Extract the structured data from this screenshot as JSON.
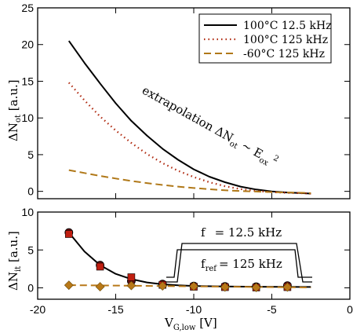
{
  "chart_data": [
    {
      "type": "line",
      "panel": "top",
      "ylabel": "ΔN",
      "ylabel_sub": "ot",
      "ylabel_unit": "[a.u.]",
      "xlim": [
        -20,
        0
      ],
      "ylim": [
        -1,
        25
      ],
      "xticks": [
        -20,
        -15,
        -10,
        -5,
        0
      ],
      "yticks": [
        0,
        5,
        10,
        15,
        20,
        25
      ],
      "series": [
        {
          "name": "100°C 12.5 kHz",
          "color": "#000000",
          "style": "solid",
          "x": [
            -18,
            -17,
            -16,
            -15,
            -14,
            -13,
            -12,
            -11,
            -10,
            -9,
            -8,
            -7,
            -6,
            -5,
            -4,
            -3,
            -2.5
          ],
          "y": [
            20.5,
            17.5,
            14.7,
            12.0,
            9.6,
            7.6,
            5.8,
            4.3,
            3.0,
            2.0,
            1.25,
            0.65,
            0.25,
            0.0,
            -0.15,
            -0.25,
            -0.3
          ]
        },
        {
          "name": "100°C 125 kHz",
          "color": "#b02a10",
          "style": "dotted",
          "x": [
            -18,
            -17,
            -16,
            -15,
            -14,
            -13,
            -12,
            -11,
            -10,
            -9,
            -8,
            -7,
            -6,
            -5,
            -4,
            -3,
            -2.5
          ],
          "y": [
            14.8,
            12.4,
            10.2,
            8.3,
            6.6,
            5.1,
            3.85,
            2.8,
            1.95,
            1.25,
            0.7,
            0.3,
            0.05,
            -0.1,
            -0.2,
            -0.25,
            -0.3
          ]
        },
        {
          "name": "-60°C  125 kHz",
          "color": "#b07818",
          "style": "dashed",
          "x": [
            -18,
            -17,
            -16,
            -15,
            -14,
            -13,
            -12,
            -11,
            -10,
            -9,
            -8,
            -7,
            -6,
            -5,
            -4,
            -3,
            -2.5
          ],
          "y": [
            2.9,
            2.5,
            2.1,
            1.75,
            1.42,
            1.13,
            0.87,
            0.65,
            0.45,
            0.29,
            0.15,
            0.05,
            -0.03,
            -0.1,
            -0.15,
            -0.2,
            -0.25
          ]
        }
      ],
      "annotation": {
        "text": "extrapolation  ΔN",
        "sub1": "ot",
        "mid": " ~ E",
        "sub2": "ox",
        "sup": "2"
      }
    },
    {
      "type": "scatter",
      "panel": "bottom",
      "xlabel": "V",
      "xlabel_sub": "G,low",
      "xlabel_unit": " [V]",
      "ylabel": "ΔN",
      "ylabel_sub": "it",
      "ylabel_unit": "[a.u.]",
      "xlim": [
        -20,
        0
      ],
      "ylim": [
        -1.5,
        10
      ],
      "xticks": [
        -20,
        -15,
        -10,
        -5,
        0
      ],
      "yticks": [
        0,
        5,
        10
      ],
      "series": [
        {
          "name": "circles",
          "color": "#6a1010",
          "marker": "circle",
          "x": [
            -18,
            -16,
            -14,
            -12,
            -10,
            -8,
            -6,
            -4
          ],
          "y": [
            7.3,
            3.0,
            0.9,
            0.5,
            0.25,
            0.2,
            0.15,
            0.3
          ]
        },
        {
          "name": "squares",
          "color": "#c01e10",
          "marker": "square",
          "x": [
            -18,
            -16,
            -14,
            -12,
            -10,
            -8,
            -6,
            -4
          ],
          "y": [
            7.1,
            2.8,
            1.4,
            0.4,
            0.15,
            0.1,
            0.05,
            0.1
          ]
        },
        {
          "name": "diamonds",
          "color": "#b87818",
          "marker": "diamond",
          "x": [
            -18,
            -16,
            -14,
            -12,
            -10,
            -8,
            -6,
            -4
          ],
          "y": [
            0.35,
            0.15,
            0.3,
            0.25,
            0.2,
            0.1,
            0.05,
            0.1
          ]
        }
      ],
      "fits": [
        {
          "color": "#000000",
          "style": "solid",
          "x": [
            -18,
            -17,
            -16,
            -15,
            -14,
            -13,
            -12,
            -11,
            -10,
            -8,
            -6,
            -4,
            -2.5
          ],
          "y": [
            7.3,
            4.8,
            3.0,
            1.85,
            1.15,
            0.72,
            0.47,
            0.33,
            0.25,
            0.18,
            0.15,
            0.13,
            0.12
          ]
        },
        {
          "color": "#b87818",
          "style": "dashed",
          "x": [
            -18,
            -14,
            -10,
            -6,
            -2.5
          ],
          "y": [
            0.35,
            0.28,
            0.2,
            0.12,
            0.05
          ]
        }
      ],
      "pulse_labels": {
        "f1": "f",
        "f1_value": "= 12.5 kHz",
        "f2": "f",
        "f2_sub": "ref",
        "f2_value": "= 125 kHz"
      }
    }
  ]
}
